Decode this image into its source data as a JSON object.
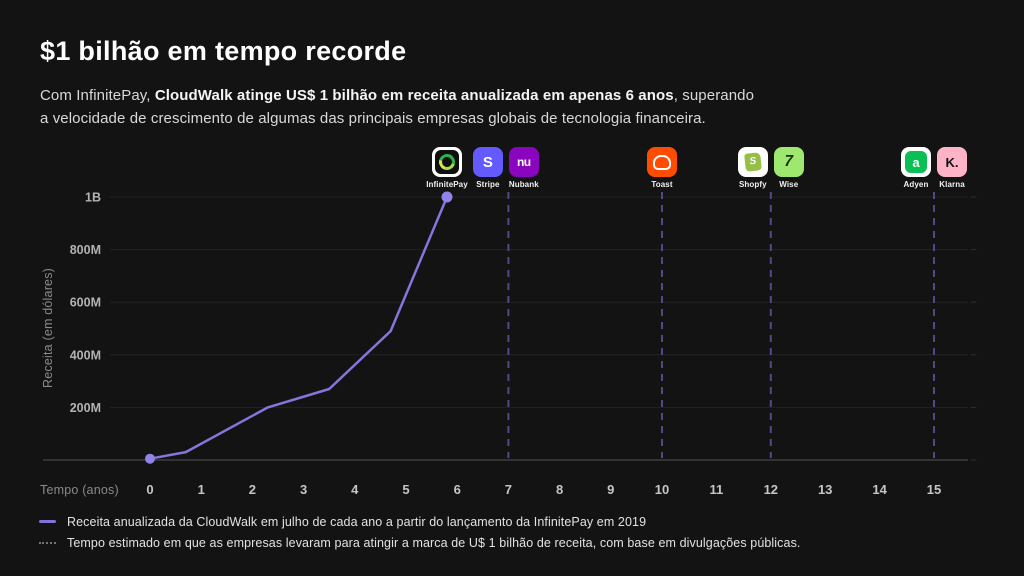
{
  "header": {
    "title": "$1 bilhão em tempo recorde",
    "subtitle_prefix": "Com InfinitePay, ",
    "subtitle_bold": "CloudWalk atinge US$ 1 bilhão em receita anualizada em apenas 6 anos",
    "subtitle_suffix": ", superando",
    "subtitle_line2": "a velocidade de crescimento de algumas das principais empresas globais de tecnologia financeira."
  },
  "chart_data": {
    "type": "line",
    "title": "",
    "xlabel": "Tempo (anos)",
    "ylabel": "Receita (em dólares)",
    "xlim": [
      0,
      16
    ],
    "ylim": [
      0,
      1050
    ],
    "grid": "horizontal-only",
    "x_ticks": [
      0,
      1,
      2,
      3,
      4,
      5,
      6,
      7,
      8,
      9,
      10,
      11,
      12,
      13,
      14,
      15
    ],
    "y_ticks": [
      {
        "value": 200,
        "label": "200M"
      },
      {
        "value": 400,
        "label": "400M"
      },
      {
        "value": 600,
        "label": "600M"
      },
      {
        "value": 800,
        "label": "800M"
      },
      {
        "value": 1000,
        "label": "1B"
      }
    ],
    "series": [
      {
        "name": "Receita anualizada da CloudWalk (US$ milhões)",
        "color": "#8376dc",
        "dot_color": "#9184e8",
        "points": [
          [
            0,
            5
          ],
          [
            0.7,
            30
          ],
          [
            2.3,
            200
          ],
          [
            3.5,
            270
          ],
          [
            4.7,
            490
          ],
          [
            5.8,
            1000
          ]
        ]
      }
    ],
    "milestones": [
      {
        "year": 7,
        "companies": [
          "Stripe",
          "Nubank"
        ]
      },
      {
        "year": 10,
        "companies": [
          "Toast"
        ]
      },
      {
        "year": 12,
        "companies": [
          "Shopfy",
          "Wise"
        ]
      },
      {
        "year": 15,
        "companies": [
          "Adyen",
          "Klarna"
        ]
      }
    ],
    "logos": [
      {
        "label": "InfinitePay",
        "year": 5.8,
        "style": "infinitepay",
        "tile": "#ffffff"
      },
      {
        "label": "Stripe",
        "year": 6.6,
        "style": "stripe",
        "tile": "#635bff",
        "glyph": "S"
      },
      {
        "label": "Nubank",
        "year": 7.3,
        "style": "nubank",
        "tile": "#8a05be",
        "glyph": "nu"
      },
      {
        "label": "Toast",
        "year": 10,
        "style": "toast",
        "tile": "#ff4c00"
      },
      {
        "label": "Shopfy",
        "year": 11.67,
        "style": "shopify",
        "tile": "#ffffff",
        "glyph": "S"
      },
      {
        "label": "Wise",
        "year": 12.33,
        "style": "wise",
        "tile": "#9fe870",
        "glyph": "7"
      },
      {
        "label": "Adyen",
        "year": 14.67,
        "style": "adyen",
        "tile": "#ffffff",
        "glyph": "a"
      },
      {
        "label": "Klarna",
        "year": 15.33,
        "style": "klarna",
        "tile": "#ffb3c7",
        "glyph": "K."
      }
    ]
  },
  "legend": [
    {
      "swatch": "solid-line",
      "text": "Receita anualizada da CloudWalk em julho de cada ano a partir do lançamento da InfinitePay em 2019"
    },
    {
      "swatch": "dotted-line",
      "text": "Tempo estimado em que as empresas levaram para atingir a marca de U$ 1 bilhão de receita, com base em divulgações públicas."
    }
  ],
  "colors": {
    "background": "#131313",
    "line": "#8376dc",
    "dot": "#9184e8",
    "dashed": "#4f4987",
    "gridline": "#232323",
    "baseline": "#454545",
    "title": "#ffffff"
  }
}
